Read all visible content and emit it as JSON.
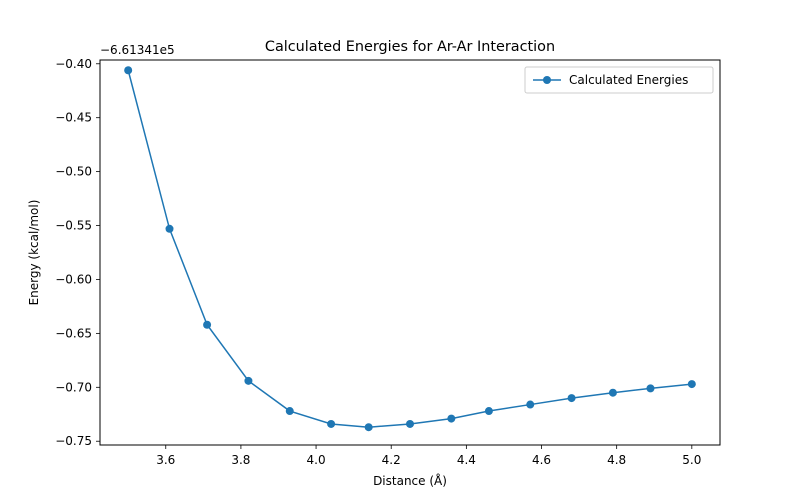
{
  "chart_data": {
    "type": "line",
    "title": "Calculated Energies for Ar-Ar Interaction",
    "xlabel": "Distance (Å)",
    "ylabel": "Energy (kcal/mol)",
    "y_offset_label": "−6.61341e5",
    "xlim": [
      3.425,
      5.075
    ],
    "ylim": [
      -0.7535,
      -0.3965
    ],
    "x_ticks": [
      3.6,
      3.8,
      4.0,
      4.2,
      4.4,
      4.6,
      4.8,
      5.0
    ],
    "x_tick_labels": [
      "3.6",
      "3.8",
      "4.0",
      "4.2",
      "4.4",
      "4.6",
      "4.8",
      "5.0"
    ],
    "y_ticks": [
      -0.4,
      -0.45,
      -0.5,
      -0.55,
      -0.6,
      -0.65,
      -0.7,
      -0.75
    ],
    "y_tick_labels": [
      "−0.40",
      "−0.45",
      "−0.50",
      "−0.55",
      "−0.60",
      "−0.65",
      "−0.70",
      "−0.75"
    ],
    "grid": false,
    "legend_position": "top-right",
    "color": "#1f77b4",
    "series": [
      {
        "name": "Calculated Energies",
        "x": [
          3.5,
          3.61,
          3.71,
          3.82,
          3.93,
          4.04,
          4.14,
          4.25,
          4.36,
          4.46,
          4.57,
          4.68,
          4.79,
          4.89,
          5.0
        ],
        "y": [
          -0.406,
          -0.553,
          -0.642,
          -0.694,
          -0.722,
          -0.734,
          -0.737,
          -0.734,
          -0.729,
          -0.722,
          -0.716,
          -0.71,
          -0.705,
          -0.701,
          -0.697
        ]
      }
    ]
  }
}
